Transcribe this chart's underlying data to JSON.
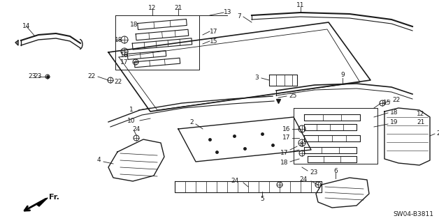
{
  "bg_color": "#ffffff",
  "line_color": "#1a1a1a",
  "text_color": "#1a1a1a",
  "footer_code": "SW04-B3811",
  "figsize": [
    6.28,
    3.2
  ],
  "dpi": 100
}
